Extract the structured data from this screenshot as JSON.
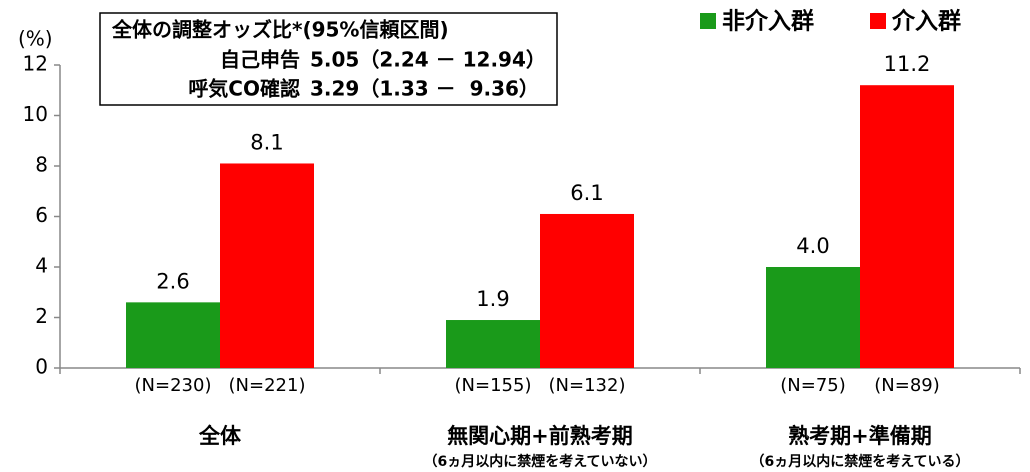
{
  "chart_data": {
    "type": "bar",
    "y_label": "(%)",
    "categories": [
      "全体",
      "無関心期+前熟考期",
      "熟考期+準備期"
    ],
    "category_notes": [
      null,
      "（6ヵ月以内に禁煙を考えていない）",
      "（6ヵ月以内に禁煙を考えている）"
    ],
    "series": [
      {
        "name": "非介入群",
        "color": "#1a9a1a",
        "values": [
          2.6,
          1.9,
          4.0
        ],
        "value_labels": [
          "2.6",
          "1.9",
          "4.0"
        ],
        "n_labels": [
          "(N=230)",
          "(N=155)",
          "(N=75)"
        ]
      },
      {
        "name": "介入群",
        "color": "#ff0000",
        "values": [
          8.1,
          6.1,
          11.2
        ],
        "value_labels": [
          "8.1",
          "6.1",
          "11.2"
        ],
        "n_labels": [
          "(N=221)",
          "(N=132)",
          "(N=89)"
        ]
      }
    ],
    "ylim": [
      0,
      12
    ],
    "yticks": [
      0,
      2,
      4,
      6,
      8,
      10,
      12
    ],
    "annotation": {
      "title": "全体の調整オッズ比*(95%信頼区間)",
      "rows": [
        {
          "label": "自己申告",
          "value": "5.05（2.24 － 12.94）",
          "color": "#000000"
        },
        {
          "label": "呼気CO確認",
          "value": "3.29（1.33 －  9.36）",
          "color": "#cc0000"
        }
      ]
    },
    "legend": "top-right"
  }
}
